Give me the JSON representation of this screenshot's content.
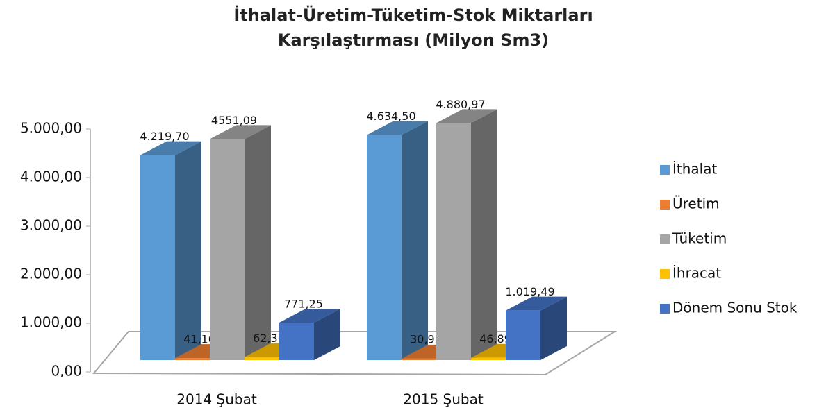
{
  "chart_data": {
    "type": "bar3d",
    "title": "İthalat-Üretim-Tüketim-Stok Miktarları Karşılaştırması (Milyon Sm3)",
    "categories": [
      "2014 Şubat",
      "2015 Şubat"
    ],
    "series": [
      {
        "name": "İthalat",
        "color": "#5b9bd5",
        "values": [
          4219.7,
          4634.5
        ],
        "value_labels": [
          "4.219,70",
          "4.634,50"
        ]
      },
      {
        "name": "Üretim",
        "color": "#ed7d31",
        "values": [
          41.1,
          30.92
        ],
        "value_labels": [
          "41,10",
          "30,92"
        ]
      },
      {
        "name": "Tüketim",
        "color": "#a5a5a5",
        "values": [
          4551.09,
          4880.97
        ],
        "value_labels": [
          "4551,09",
          "4.880,97"
        ]
      },
      {
        "name": "İhracat",
        "color": "#ffc000",
        "values": [
          62.36,
          46.89
        ],
        "value_labels": [
          "62,36",
          "46,89"
        ]
      },
      {
        "name": "Dönem Sonu Stok",
        "color": "#4472c4",
        "values": [
          771.25,
          1019.49
        ],
        "value_labels": [
          "771,25",
          "1.019,49"
        ]
      }
    ],
    "ylim": [
      0,
      5000
    ],
    "yticks": [
      {
        "value": 0,
        "label": "0,00"
      },
      {
        "value": 1000,
        "label": "1.000,00"
      },
      {
        "value": 2000,
        "label": "2.000,00"
      },
      {
        "value": 3000,
        "label": "3.000,00"
      },
      {
        "value": 4000,
        "label": "4.000,00"
      },
      {
        "value": 5000,
        "label": "5.000,00"
      }
    ],
    "legend": "right"
  }
}
